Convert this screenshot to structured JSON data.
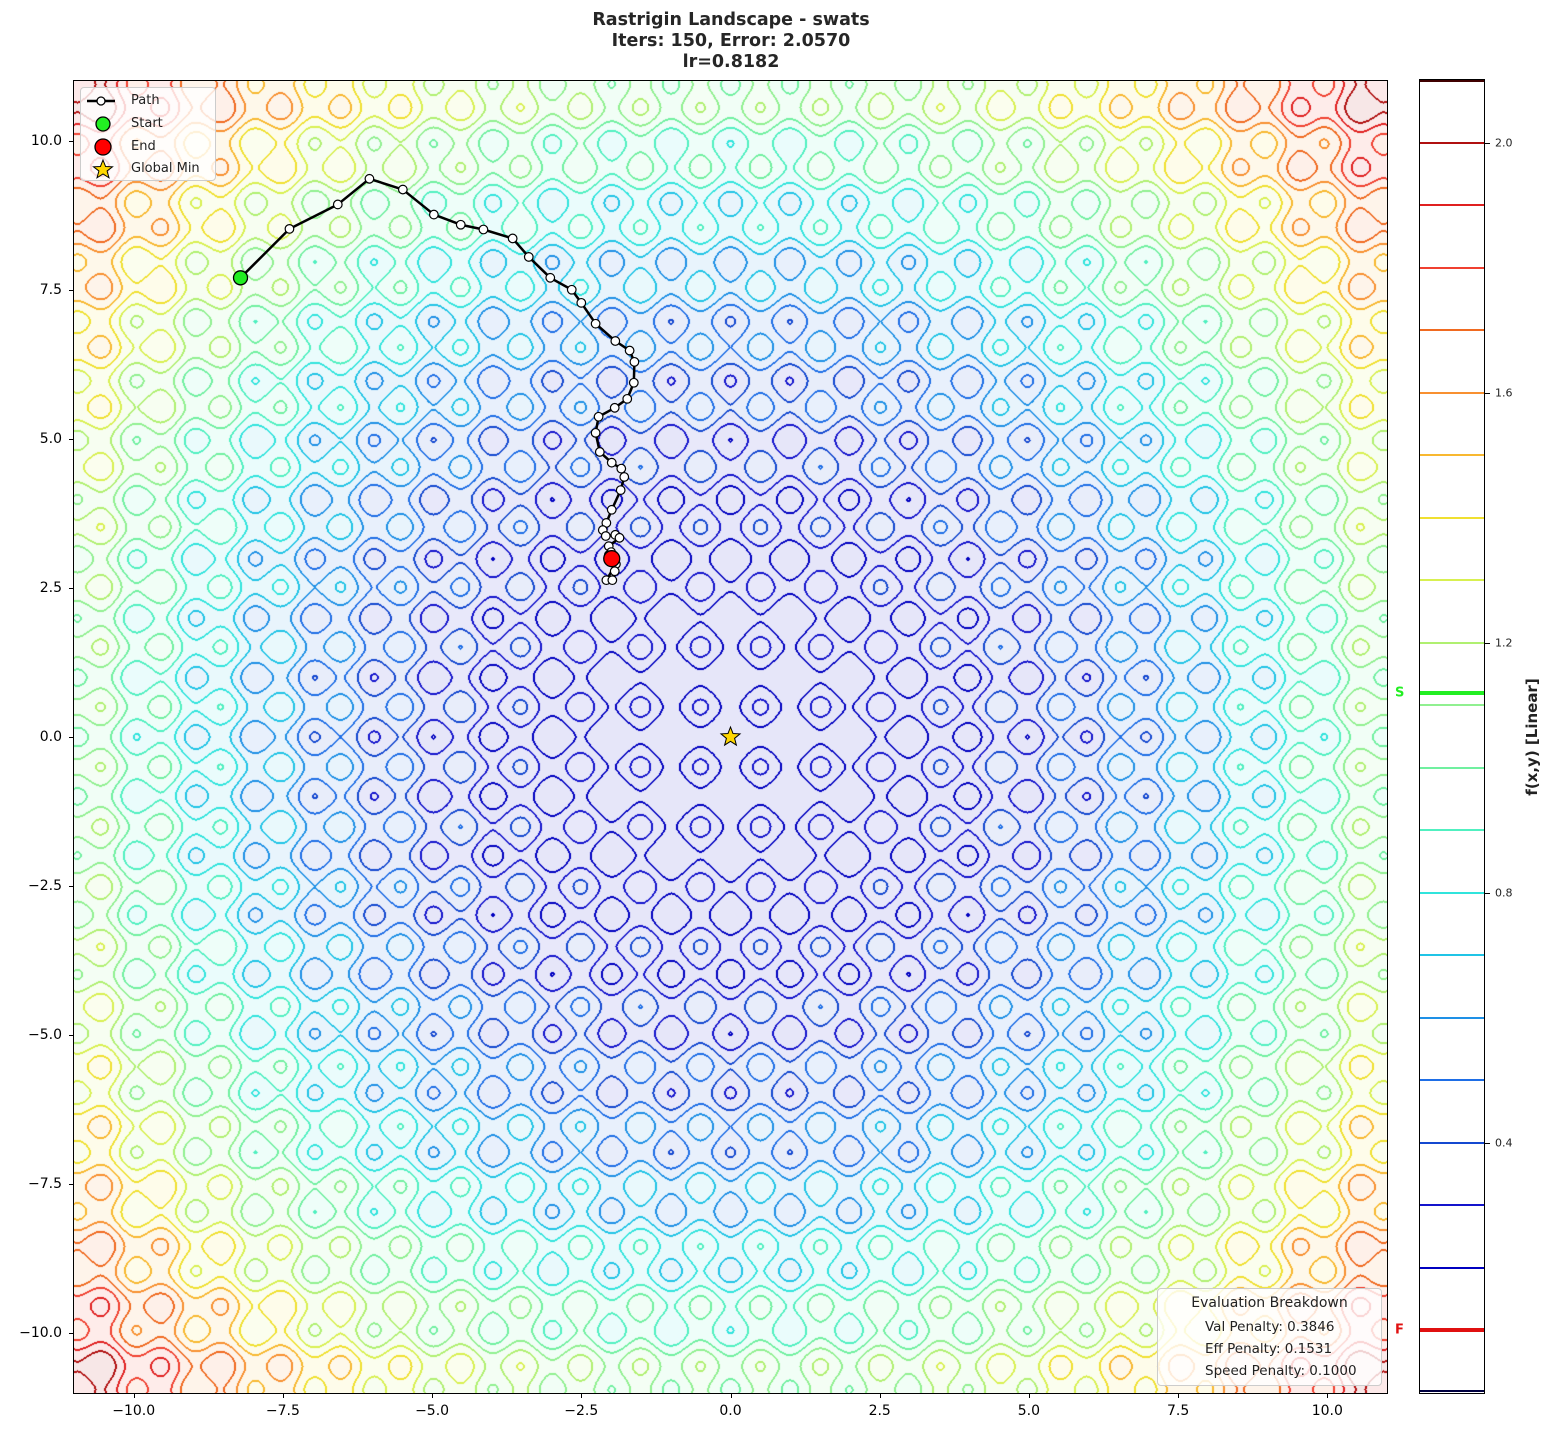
{
  "chart_data": {
    "type": "contour",
    "title_lines": [
      "Rastrigin Landscape - swats",
      "Iters: 150, Error: 2.0570",
      "lr=0.8182"
    ],
    "xlim": [
      -11,
      11
    ],
    "ylim": [
      -11,
      11
    ],
    "x_ticks": [
      -10,
      -7.5,
      -5,
      -2.5,
      0,
      2.5,
      5,
      7.5,
      10
    ],
    "x_tick_labels": [
      "−10.0",
      "−7.5",
      "−5.0",
      "−2.5",
      "0.0",
      "2.5",
      "5.0",
      "7.5",
      "10.0"
    ],
    "y_ticks": [
      -10,
      -7.5,
      -5,
      -2.5,
      0,
      2.5,
      5,
      7.5,
      10
    ],
    "y_tick_labels": [
      "−10.0",
      "−7.5",
      "−5.0",
      "−2.5",
      "0.0",
      "2.5",
      "5.0",
      "7.5",
      "10.0"
    ],
    "grid": false,
    "function": "rastrigin",
    "colorbar": {
      "label": "f(x,y) [Linear]",
      "range": [
        0,
        2.1
      ],
      "ticks": [
        0.4,
        0.8,
        1.2,
        1.6,
        2.0
      ],
      "tick_labels": [
        "0.4",
        "0.8",
        "1.2",
        "1.6",
        "2.0"
      ],
      "levels": [
        0.2,
        0.3,
        0.4,
        0.5,
        0.6,
        0.7,
        0.8,
        0.9,
        1.0,
        1.1,
        1.2,
        1.3,
        1.4,
        1.5,
        1.6,
        1.7,
        1.8,
        1.9,
        2.0
      ],
      "level_colors": [
        "#0000c0",
        "#1414cc",
        "#1448d0",
        "#1e6ee6",
        "#1e90e6",
        "#20c4e6",
        "#30e4dc",
        "#50f0c0",
        "#70f0a0",
        "#90f090",
        "#b0f070",
        "#d8f050",
        "#f0e030",
        "#f8b830",
        "#f89030",
        "#f06a20",
        "#f04030",
        "#e02020",
        "#b01010"
      ],
      "edge_colors": {
        "min": "#000040",
        "max": "#400000"
      },
      "markers": [
        {
          "label": "S",
          "value": 1.12,
          "color": "#22ee22"
        },
        {
          "label": "F",
          "value": 0.1,
          "color": "#e01010"
        }
      ]
    },
    "legend": {
      "position": "upper-left",
      "items": [
        "Path",
        "Start",
        "End",
        "Global Min"
      ]
    },
    "series": [
      {
        "name": "Path",
        "color": "#000000",
        "points": [
          [
            -8.21,
            7.7
          ],
          [
            -7.39,
            8.52
          ],
          [
            -6.58,
            8.93
          ],
          [
            -6.05,
            9.36
          ],
          [
            -5.49,
            9.18
          ],
          [
            -4.97,
            8.76
          ],
          [
            -4.52,
            8.59
          ],
          [
            -4.14,
            8.51
          ],
          [
            -3.65,
            8.36
          ],
          [
            -3.38,
            8.05
          ],
          [
            -3.02,
            7.7
          ],
          [
            -2.66,
            7.5
          ],
          [
            -2.5,
            7.28
          ],
          [
            -2.26,
            6.93
          ],
          [
            -1.93,
            6.64
          ],
          [
            -1.69,
            6.48
          ],
          [
            -1.61,
            6.29
          ],
          [
            -1.62,
            5.94
          ],
          [
            -1.73,
            5.67
          ],
          [
            -1.94,
            5.52
          ],
          [
            -2.21,
            5.37
          ],
          [
            -2.26,
            5.1
          ],
          [
            -2.19,
            4.78
          ],
          [
            -1.99,
            4.6
          ],
          [
            -1.83,
            4.5
          ],
          [
            -1.78,
            4.36
          ],
          [
            -1.84,
            4.14
          ],
          [
            -1.99,
            3.81
          ],
          [
            -2.08,
            3.59
          ],
          [
            -2.14,
            3.47
          ],
          [
            -2.09,
            3.37
          ],
          [
            -1.93,
            3.39
          ],
          [
            -1.86,
            3.34
          ],
          [
            -2.04,
            3.2
          ],
          [
            -2.0,
            3.1
          ],
          [
            -1.92,
            2.9
          ],
          [
            -2.08,
            2.63
          ],
          [
            -1.98,
            2.63
          ],
          [
            -1.94,
            2.78
          ],
          [
            -2.04,
            3.05
          ],
          [
            -1.99,
            2.99
          ]
        ]
      },
      {
        "name": "Start",
        "x": -8.21,
        "y": 7.7,
        "color": "#22ee22"
      },
      {
        "name": "End",
        "x": -1.99,
        "y": 2.99,
        "color": "#ff0000"
      },
      {
        "name": "Global Min",
        "x": 0,
        "y": 0,
        "color": "#ffd700"
      }
    ],
    "annotation": {
      "title": "Evaluation Breakdown",
      "rows": [
        "Val Penalty: 0.3846",
        "Eff Penalty: 0.1531",
        "Speed Penalty: 0.1000"
      ]
    }
  }
}
